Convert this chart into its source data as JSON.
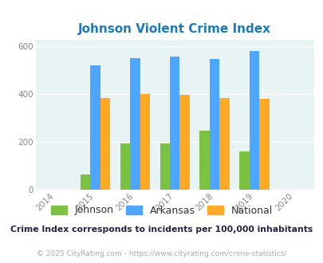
{
  "title": "Johnson Violent Crime Index",
  "years": [
    2015,
    2016,
    2017,
    2018,
    2019
  ],
  "johnson": [
    62,
    193,
    193,
    248,
    160
  ],
  "arkansas": [
    520,
    552,
    557,
    547,
    582
  ],
  "national": [
    383,
    400,
    397,
    383,
    379
  ],
  "color_johnson": "#7bc242",
  "color_arkansas": "#4da6ff",
  "color_national": "#ffaa22",
  "xlim": [
    2013.5,
    2020.5
  ],
  "ylim": [
    0,
    630
  ],
  "yticks": [
    0,
    200,
    400,
    600
  ],
  "background_color": "#e8f3f3",
  "title_color": "#1a7abf",
  "note_text": "Crime Index corresponds to incidents per 100,000 inhabitants",
  "footer_text": "© 2025 CityRating.com - https://www.cityrating.com/crime-statistics/",
  "bar_width": 0.25,
  "legend_labels": [
    "Johnson",
    "Arkansas",
    "National"
  ],
  "note_color": "#222244",
  "footer_color": "#aaaaaa"
}
